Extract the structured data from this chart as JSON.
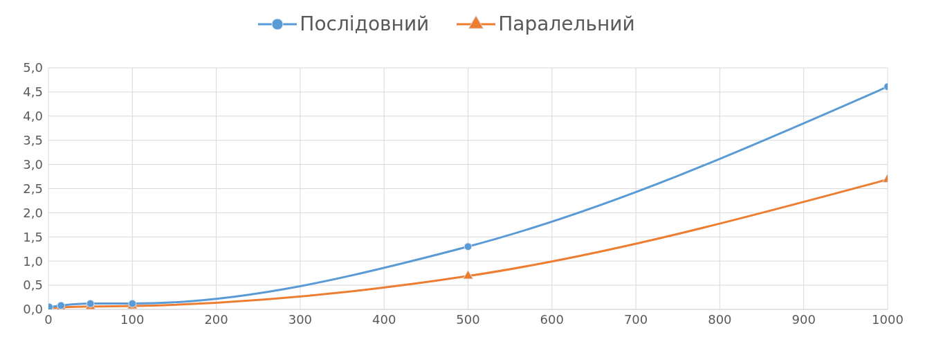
{
  "chart_data": {
    "type": "line",
    "x": [
      1,
      15,
      50,
      100,
      500,
      1000
    ],
    "series": [
      {
        "name": "Послідовний",
        "color": "#5b9bd5",
        "marker": "circle",
        "values": [
          0.05,
          0.08,
          0.12,
          0.12,
          1.3,
          4.61
        ]
      },
      {
        "name": "Паралельний",
        "color": "#ed7d31",
        "marker": "triangle",
        "values": [
          0.02,
          0.04,
          0.06,
          0.07,
          0.69,
          2.69
        ]
      }
    ],
    "xlim": [
      0,
      1000
    ],
    "xticks": [
      0,
      100,
      200,
      300,
      400,
      500,
      600,
      700,
      800,
      900,
      1000
    ],
    "ylim": [
      0,
      5
    ],
    "yticks": [
      {
        "value": 0,
        "label": "0,0"
      },
      {
        "value": 0.5,
        "label": "0,5"
      },
      {
        "value": 1,
        "label": "1,0"
      },
      {
        "value": 1.5,
        "label": "1,5"
      },
      {
        "value": 2,
        "label": "2,0"
      },
      {
        "value": 2.5,
        "label": "2,5"
      },
      {
        "value": 3,
        "label": "3,0"
      },
      {
        "value": 3.5,
        "label": "3,5"
      },
      {
        "value": 4,
        "label": "4,0"
      },
      {
        "value": 4.5,
        "label": "4,5"
      },
      {
        "value": 5,
        "label": "5,0"
      }
    ],
    "grid": true,
    "legend": "top",
    "line_style": "solid"
  }
}
